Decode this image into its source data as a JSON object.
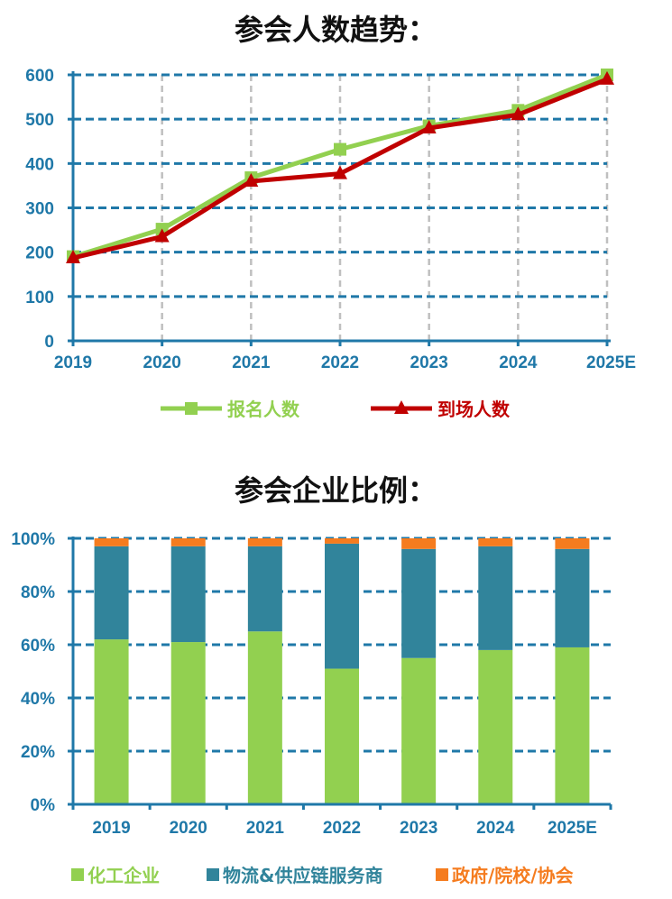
{
  "colors": {
    "registered": "#92d050",
    "attended": "#c00000",
    "chemical": "#92d050",
    "logistics": "#31849b",
    "gov": "#f57c1f",
    "axis": "#1f78a8",
    "grid_h": "#1f78a8",
    "grid_v": "#bfbfbf"
  },
  "chart_data": [
    {
      "type": "line",
      "title": "参会人数趋势：",
      "categories": [
        "2019",
        "2020",
        "2021",
        "2022",
        "2023",
        "2024",
        "2025E"
      ],
      "series": [
        {
          "name": "报名人数",
          "values": [
            190,
            252,
            368,
            432,
            485,
            520,
            600
          ],
          "marker": "square"
        },
        {
          "name": "到场人数",
          "values": [
            187,
            235,
            360,
            377,
            480,
            510,
            590
          ],
          "marker": "triangle"
        }
      ],
      "ylim": [
        0,
        600
      ],
      "yticks": [
        "0",
        "100",
        "200",
        "300",
        "400",
        "500",
        "600"
      ],
      "grid": true,
      "legend": "bottom"
    },
    {
      "type": "bar",
      "stacked": true,
      "title": "参会企业比例：",
      "categories": [
        "2019",
        "2020",
        "2021",
        "2022",
        "2023",
        "2024",
        "2025E"
      ],
      "series": [
        {
          "name": "化工企业",
          "values": [
            62,
            61,
            65,
            51,
            55,
            58,
            59
          ]
        },
        {
          "name": "物流&供应链服务商",
          "values": [
            35,
            36,
            32,
            47,
            41,
            39,
            37
          ]
        },
        {
          "name": "政府/院校/协会",
          "values": [
            3,
            3,
            3,
            2,
            4,
            3,
            4
          ]
        }
      ],
      "ylim": [
        0,
        100
      ],
      "yticks": [
        "0%",
        "20%",
        "40%",
        "60%",
        "80%",
        "100%"
      ],
      "grid": true,
      "legend": "bottom"
    }
  ]
}
